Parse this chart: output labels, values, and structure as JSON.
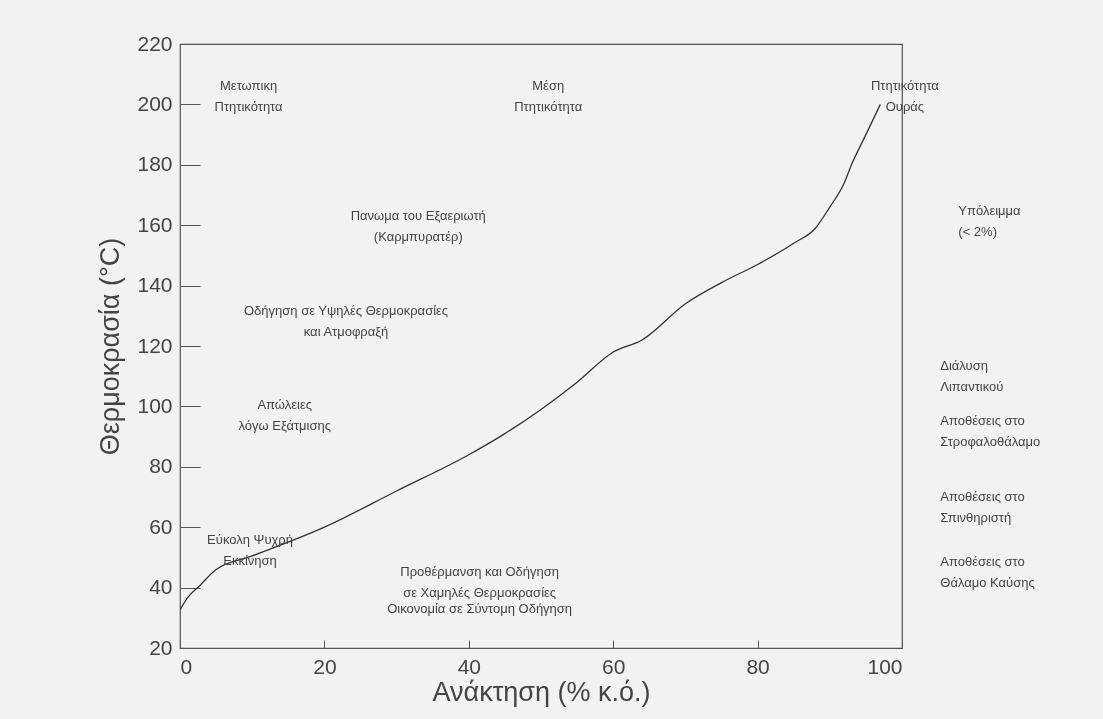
{
  "chart_data": {
    "type": "line",
    "xlabel": "Ανάκτηση (% κ.ό.)",
    "ylabel": "Θερμοκρασία (°C)",
    "x": [
      0,
      1,
      2.8,
      5,
      10,
      20,
      30,
      40,
      45,
      50,
      55,
      60,
      64,
      70,
      75,
      80,
      85,
      88,
      90,
      92,
      93,
      95,
      97
    ],
    "series": [
      {
        "color": "#333333",
        "values": [
          32.6,
          36.5,
          40.8,
          46,
          50.5,
          60,
          72,
          84,
          91,
          99,
          108,
          118,
          122,
          134,
          141,
          147,
          154,
          159,
          166,
          174,
          180,
          190,
          200
        ]
      }
    ],
    "xlim": [
      0,
      100
    ],
    "xticks": [
      0,
      20,
      40,
      60,
      80,
      100
    ],
    "ylim": [
      20,
      220
    ],
    "yticks": [
      20,
      40,
      60,
      80,
      100,
      120,
      140,
      160,
      180,
      200,
      220
    ],
    "grid": false,
    "marker": "none",
    "line_style": "solid",
    "annotations": [
      "Μετωπικη\nΠτητικότητα",
      "Μέση\nΠτητικότητα",
      "Πτητικότητα\nΟυράς",
      "Πανωμα του Εξαεριωτή\n(Καρμπυρατέρ)",
      "Οδήγηση σε Υψηλές Θερμοκρασίες\nκαι Ατμοφραξή",
      "Απώλειες\nλόγω Εξάτμισης",
      "Εύκολη Ψυχρή\nΕκκίνηση",
      "Προθέρμανση και Οδήγηση\nσε Χαμηλές Θερμοκρασίες",
      "Οικονομία σε Σύντομη Οδήγηση",
      "Υπόλειμμα\n(< 2%)",
      "Διάλυση\nΛιπαντικού",
      "Αποθέσεις στο\nΣτροφαλοθάλαμο",
      "Αποθέσεις στο\nΣπινθηριστή",
      "Αποθέσεις στο\nΘάλαμο Καύσης"
    ]
  }
}
